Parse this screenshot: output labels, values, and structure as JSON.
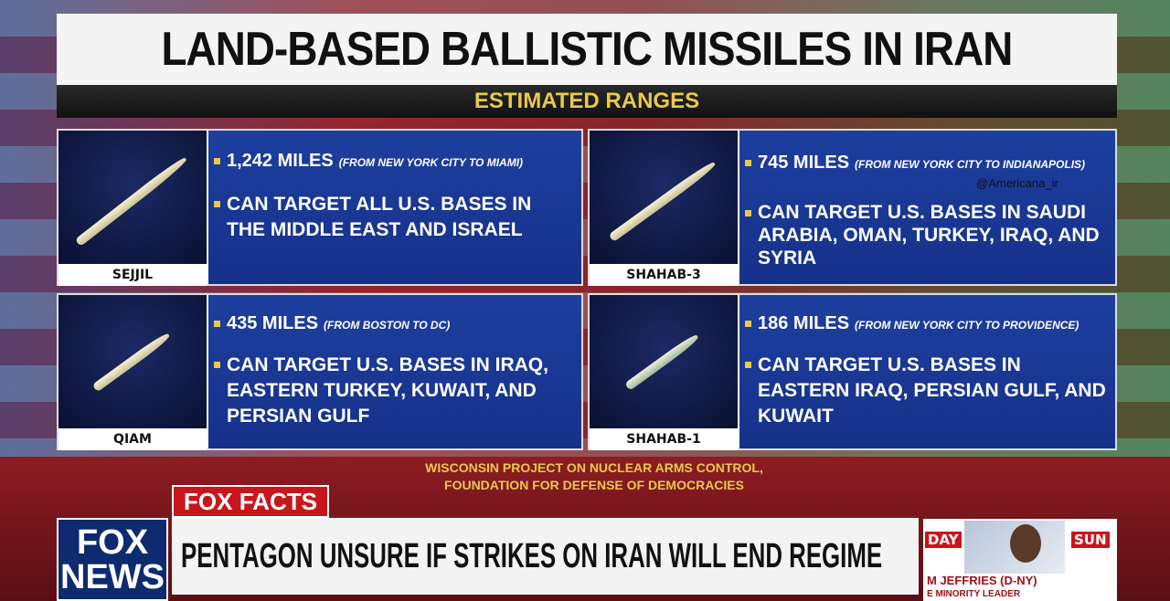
{
  "title": "LAND-BASED BALLISTIC MISSILES IN IRAN",
  "subtitle": "ESTIMATED RANGES",
  "watermark": "@Americana_ir",
  "colors": {
    "accent": "#e9c94a",
    "card_blue": "#1d3f9e",
    "fox_red": "#c8161d",
    "fox_navy": "#0d2b6e"
  },
  "missiles": [
    {
      "name": "SEJJIL",
      "range": "1,242 MILES",
      "range_note": "(FROM NEW YORK CITY TO MIAMI)",
      "targets": "CAN TARGET ALL U.S. BASES IN THE MIDDLE EAST AND ISRAEL"
    },
    {
      "name": "SHAHAB-3",
      "range": "745 MILES",
      "range_note": "(FROM NEW YORK CITY TO INDIANAPOLIS)",
      "targets": "CAN TARGET U.S. BASES IN SAUDI ARABIA, OMAN, TURKEY, IRAQ, AND SYRIA"
    },
    {
      "name": "QIAM",
      "range": "435 MILES",
      "range_note": "(FROM BOSTON TO DC)",
      "targets": "CAN TARGET U.S. BASES IN IRAQ, EASTERN TURKEY, KUWAIT, AND PERSIAN GULF"
    },
    {
      "name": "SHAHAB-1",
      "range": "186 MILES",
      "range_note": "(FROM NEW YORK CITY TO PROVIDENCE)",
      "targets": "CAN TARGET U.S. BASES IN EASTERN IRAQ, PERSIAN GULF, AND KUWAIT"
    }
  ],
  "source": [
    "WISCONSIN PROJECT ON NUCLEAR ARMS CONTROL,",
    "FOUNDATION FOR DEFENSE OF DEMOCRACIES"
  ],
  "lower_third": {
    "label": "FOX FACTS",
    "headline": "PENTAGON UNSURE IF STRIKES ON IRAN WILL END REGIME",
    "logo": [
      "FOX",
      "NEWS"
    ]
  },
  "thumbnail": {
    "tag_left": "DAY",
    "tag_right": "SUN",
    "name": "M JEFFRIES (D-NY)",
    "title": "E MINORITY LEADER"
  }
}
